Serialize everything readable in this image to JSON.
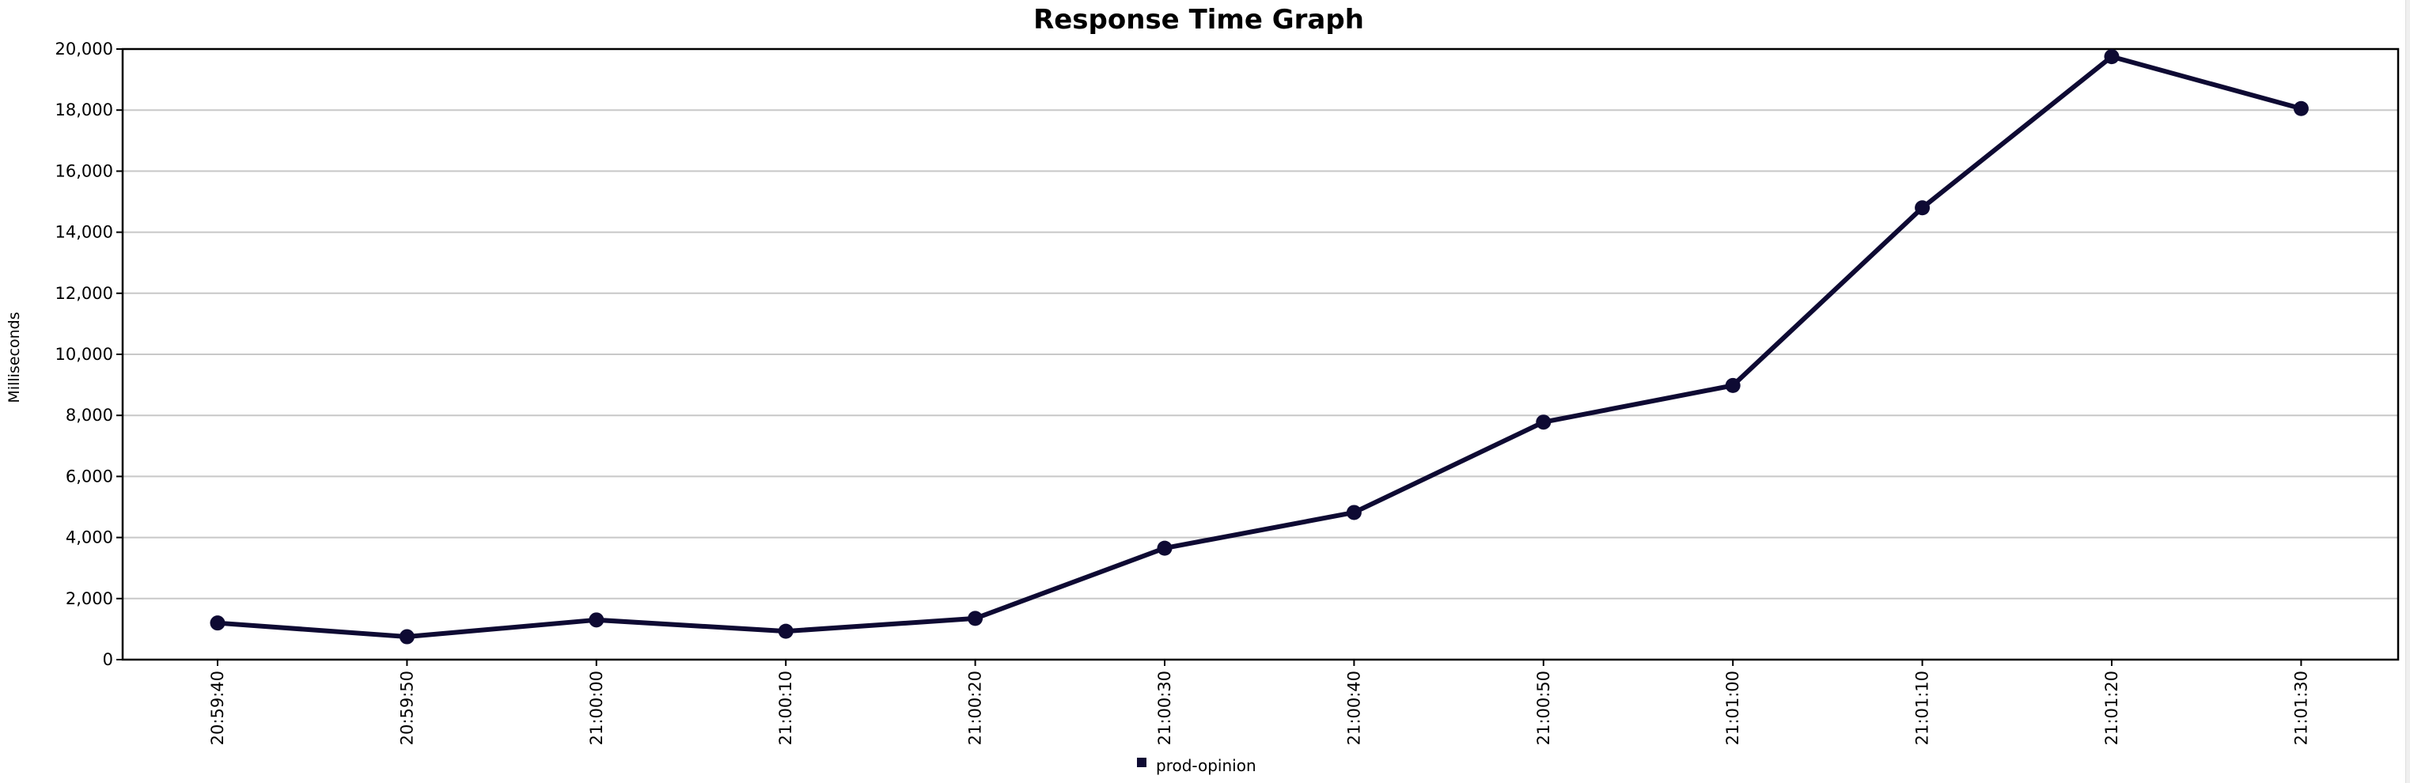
{
  "chart_data": {
    "type": "line",
    "title": "Response Time Graph",
    "xlabel": "",
    "ylabel": "Milliseconds",
    "x": [
      "20:59:40",
      "20:59:50",
      "21:00:00",
      "21:00:10",
      "21:00:20",
      "21:00:30",
      "21:00:40",
      "21:00:50",
      "21:01:00",
      "21:01:10",
      "21:01:20",
      "21:01:30"
    ],
    "series": [
      {
        "name": "prod-opinion",
        "values": [
          1200,
          750,
          1300,
          930,
          1350,
          3650,
          4820,
          7780,
          8980,
          14800,
          19750,
          18050
        ]
      }
    ],
    "ylim": [
      0,
      20000
    ],
    "yticks": [
      0,
      2000,
      4000,
      6000,
      8000,
      10000,
      12000,
      14000,
      16000,
      18000,
      20000
    ],
    "ytick_labels": [
      "0",
      "2,000",
      "4,000",
      "6,000",
      "8,000",
      "10,000",
      "12,000",
      "14,000",
      "16,000",
      "18,000",
      "20,000"
    ],
    "grid": true,
    "legend_position": "bottom-center",
    "color": "#0e0a33"
  }
}
